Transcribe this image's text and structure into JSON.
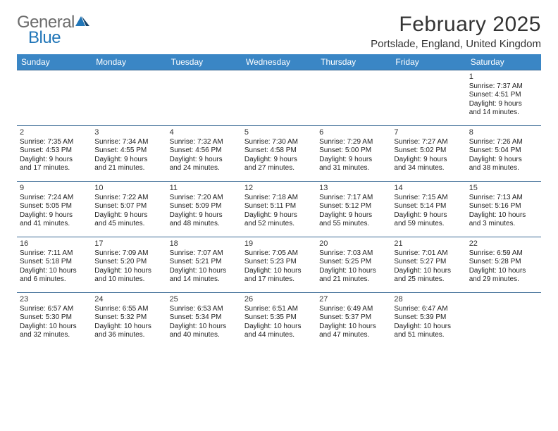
{
  "logo": {
    "textGeneral": "General",
    "textBlue": "Blue",
    "sailColor": "#2176b8"
  },
  "header": {
    "monthTitle": "February 2025",
    "location": "Portslade, England, United Kingdom"
  },
  "colors": {
    "headerBar": "#3a86c5",
    "headerText": "#ffffff",
    "rowBorder": "#3a6a95",
    "bodyText": "#222222",
    "titleText": "#333333",
    "logoGray": "#6b6b6b",
    "logoBlue": "#2176b8",
    "background": "#ffffff"
  },
  "weekdays": [
    "Sunday",
    "Monday",
    "Tuesday",
    "Wednesday",
    "Thursday",
    "Friday",
    "Saturday"
  ],
  "weeks": [
    [
      null,
      null,
      null,
      null,
      null,
      null,
      {
        "n": "1",
        "sunrise": "Sunrise: 7:37 AM",
        "sunset": "Sunset: 4:51 PM",
        "day1": "Daylight: 9 hours",
        "day2": "and 14 minutes."
      }
    ],
    [
      {
        "n": "2",
        "sunrise": "Sunrise: 7:35 AM",
        "sunset": "Sunset: 4:53 PM",
        "day1": "Daylight: 9 hours",
        "day2": "and 17 minutes."
      },
      {
        "n": "3",
        "sunrise": "Sunrise: 7:34 AM",
        "sunset": "Sunset: 4:55 PM",
        "day1": "Daylight: 9 hours",
        "day2": "and 21 minutes."
      },
      {
        "n": "4",
        "sunrise": "Sunrise: 7:32 AM",
        "sunset": "Sunset: 4:56 PM",
        "day1": "Daylight: 9 hours",
        "day2": "and 24 minutes."
      },
      {
        "n": "5",
        "sunrise": "Sunrise: 7:30 AM",
        "sunset": "Sunset: 4:58 PM",
        "day1": "Daylight: 9 hours",
        "day2": "and 27 minutes."
      },
      {
        "n": "6",
        "sunrise": "Sunrise: 7:29 AM",
        "sunset": "Sunset: 5:00 PM",
        "day1": "Daylight: 9 hours",
        "day2": "and 31 minutes."
      },
      {
        "n": "7",
        "sunrise": "Sunrise: 7:27 AM",
        "sunset": "Sunset: 5:02 PM",
        "day1": "Daylight: 9 hours",
        "day2": "and 34 minutes."
      },
      {
        "n": "8",
        "sunrise": "Sunrise: 7:26 AM",
        "sunset": "Sunset: 5:04 PM",
        "day1": "Daylight: 9 hours",
        "day2": "and 38 minutes."
      }
    ],
    [
      {
        "n": "9",
        "sunrise": "Sunrise: 7:24 AM",
        "sunset": "Sunset: 5:05 PM",
        "day1": "Daylight: 9 hours",
        "day2": "and 41 minutes."
      },
      {
        "n": "10",
        "sunrise": "Sunrise: 7:22 AM",
        "sunset": "Sunset: 5:07 PM",
        "day1": "Daylight: 9 hours",
        "day2": "and 45 minutes."
      },
      {
        "n": "11",
        "sunrise": "Sunrise: 7:20 AM",
        "sunset": "Sunset: 5:09 PM",
        "day1": "Daylight: 9 hours",
        "day2": "and 48 minutes."
      },
      {
        "n": "12",
        "sunrise": "Sunrise: 7:18 AM",
        "sunset": "Sunset: 5:11 PM",
        "day1": "Daylight: 9 hours",
        "day2": "and 52 minutes."
      },
      {
        "n": "13",
        "sunrise": "Sunrise: 7:17 AM",
        "sunset": "Sunset: 5:12 PM",
        "day1": "Daylight: 9 hours",
        "day2": "and 55 minutes."
      },
      {
        "n": "14",
        "sunrise": "Sunrise: 7:15 AM",
        "sunset": "Sunset: 5:14 PM",
        "day1": "Daylight: 9 hours",
        "day2": "and 59 minutes."
      },
      {
        "n": "15",
        "sunrise": "Sunrise: 7:13 AM",
        "sunset": "Sunset: 5:16 PM",
        "day1": "Daylight: 10 hours",
        "day2": "and 3 minutes."
      }
    ],
    [
      {
        "n": "16",
        "sunrise": "Sunrise: 7:11 AM",
        "sunset": "Sunset: 5:18 PM",
        "day1": "Daylight: 10 hours",
        "day2": "and 6 minutes."
      },
      {
        "n": "17",
        "sunrise": "Sunrise: 7:09 AM",
        "sunset": "Sunset: 5:20 PM",
        "day1": "Daylight: 10 hours",
        "day2": "and 10 minutes."
      },
      {
        "n": "18",
        "sunrise": "Sunrise: 7:07 AM",
        "sunset": "Sunset: 5:21 PM",
        "day1": "Daylight: 10 hours",
        "day2": "and 14 minutes."
      },
      {
        "n": "19",
        "sunrise": "Sunrise: 7:05 AM",
        "sunset": "Sunset: 5:23 PM",
        "day1": "Daylight: 10 hours",
        "day2": "and 17 minutes."
      },
      {
        "n": "20",
        "sunrise": "Sunrise: 7:03 AM",
        "sunset": "Sunset: 5:25 PM",
        "day1": "Daylight: 10 hours",
        "day2": "and 21 minutes."
      },
      {
        "n": "21",
        "sunrise": "Sunrise: 7:01 AM",
        "sunset": "Sunset: 5:27 PM",
        "day1": "Daylight: 10 hours",
        "day2": "and 25 minutes."
      },
      {
        "n": "22",
        "sunrise": "Sunrise: 6:59 AM",
        "sunset": "Sunset: 5:28 PM",
        "day1": "Daylight: 10 hours",
        "day2": "and 29 minutes."
      }
    ],
    [
      {
        "n": "23",
        "sunrise": "Sunrise: 6:57 AM",
        "sunset": "Sunset: 5:30 PM",
        "day1": "Daylight: 10 hours",
        "day2": "and 32 minutes."
      },
      {
        "n": "24",
        "sunrise": "Sunrise: 6:55 AM",
        "sunset": "Sunset: 5:32 PM",
        "day1": "Daylight: 10 hours",
        "day2": "and 36 minutes."
      },
      {
        "n": "25",
        "sunrise": "Sunrise: 6:53 AM",
        "sunset": "Sunset: 5:34 PM",
        "day1": "Daylight: 10 hours",
        "day2": "and 40 minutes."
      },
      {
        "n": "26",
        "sunrise": "Sunrise: 6:51 AM",
        "sunset": "Sunset: 5:35 PM",
        "day1": "Daylight: 10 hours",
        "day2": "and 44 minutes."
      },
      {
        "n": "27",
        "sunrise": "Sunrise: 6:49 AM",
        "sunset": "Sunset: 5:37 PM",
        "day1": "Daylight: 10 hours",
        "day2": "and 47 minutes."
      },
      {
        "n": "28",
        "sunrise": "Sunrise: 6:47 AM",
        "sunset": "Sunset: 5:39 PM",
        "day1": "Daylight: 10 hours",
        "day2": "and 51 minutes."
      },
      null
    ]
  ]
}
